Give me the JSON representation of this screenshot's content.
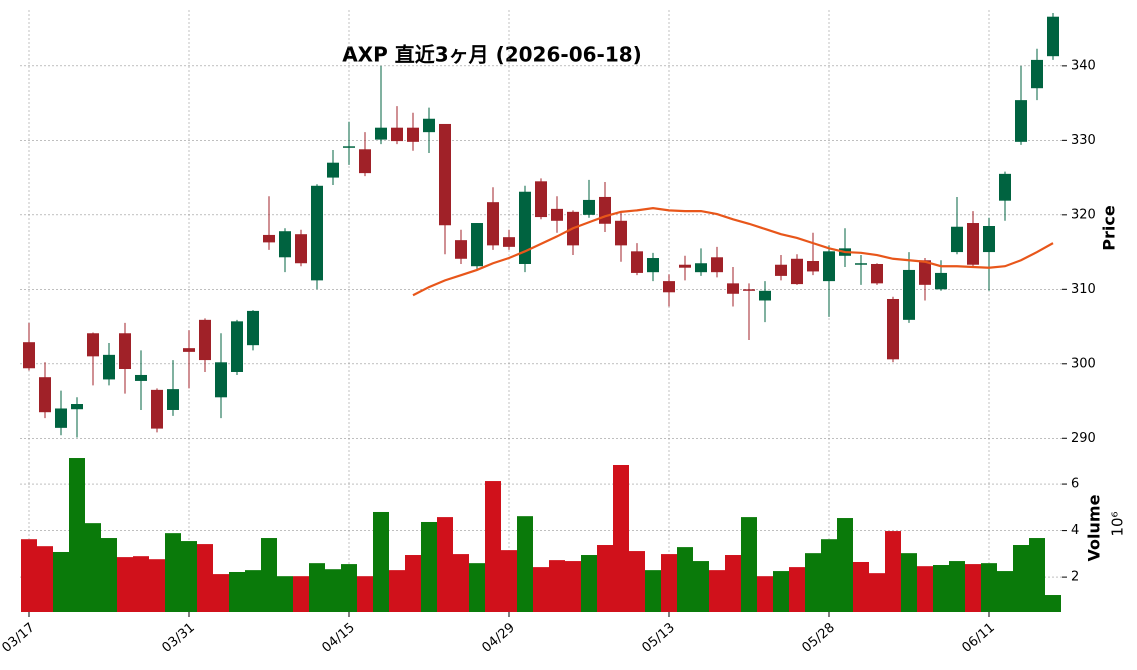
{
  "chart_data": {
    "type": "candlestick",
    "title": "AXP 直近3ヶ月 (2026-06-18)",
    "categories": [
      "03/17",
      null,
      null,
      null,
      null,
      null,
      null,
      null,
      null,
      null,
      "03/31",
      null,
      null,
      null,
      null,
      null,
      null,
      null,
      null,
      null,
      "04/15",
      null,
      null,
      null,
      null,
      null,
      null,
      null,
      null,
      null,
      "04/29",
      null,
      null,
      null,
      null,
      null,
      null,
      null,
      null,
      null,
      "05/13",
      null,
      null,
      null,
      null,
      null,
      null,
      null,
      null,
      null,
      "05/28",
      null,
      null,
      null,
      null,
      null,
      null,
      null,
      null,
      null,
      "06/11",
      null,
      null,
      null,
      null
    ],
    "open": [
      302.9,
      298.2,
      291.4,
      293.9,
      304.1,
      297.9,
      304.1,
      297.7,
      296.5,
      293.8,
      302.1,
      305.9,
      295.5,
      298.9,
      302.5,
      317.3,
      314.3,
      317.4,
      311.2,
      325.0,
      329.0,
      328.8,
      330.1,
      331.7,
      331.7,
      331.1,
      332.2,
      316.6,
      313.1,
      321.7,
      317.0,
      313.4,
      324.5,
      320.8,
      320.4,
      320.0,
      322.4,
      319.2,
      315.1,
      312.3,
      311.1,
      313.3,
      312.3,
      314.3,
      310.8,
      310.0,
      308.5,
      313.3,
      314.1,
      313.8,
      311.1,
      314.5,
      313.3,
      313.4,
      308.7,
      305.9,
      313.9,
      310.0,
      315.0,
      318.9,
      315.0,
      321.9,
      329.8,
      337.0,
      341.3
    ],
    "high": [
      305.5,
      300.2,
      296.4,
      295.5,
      304.2,
      302.8,
      305.5,
      301.8,
      296.7,
      300.5,
      304.5,
      306.1,
      304.1,
      305.9,
      307.2,
      322.5,
      318.2,
      318.0,
      324.1,
      328.7,
      332.5,
      331.1,
      340.0,
      334.6,
      333.7,
      334.4,
      332.2,
      318.0,
      318.9,
      323.7,
      318.0,
      323.9,
      324.9,
      322.5,
      320.6,
      324.7,
      324.4,
      320.4,
      316.2,
      314.9,
      312.0,
      314.5,
      315.5,
      315.7,
      313.0,
      310.8,
      311.1,
      314.6,
      314.7,
      317.6,
      315.9,
      318.2,
      314.6,
      313.5,
      309.0,
      315.0,
      314.2,
      313.9,
      322.4,
      320.5,
      319.6,
      325.8,
      340.0,
      342.3,
      347.1
    ],
    "low": [
      299.1,
      292.7,
      290.4,
      290.1,
      297.1,
      297.1,
      296.0,
      293.8,
      290.8,
      293.0,
      296.7,
      298.9,
      292.7,
      298.5,
      301.8,
      315.3,
      312.3,
      313.1,
      310.0,
      324.0,
      326.7,
      325.2,
      329.5,
      329.5,
      328.6,
      328.3,
      314.7,
      313.4,
      312.6,
      315.3,
      315.3,
      312.3,
      319.4,
      317.6,
      314.6,
      319.6,
      317.7,
      313.7,
      311.9,
      311.1,
      307.7,
      311.2,
      311.8,
      311.6,
      307.7,
      303.2,
      305.6,
      311.2,
      310.6,
      311.9,
      306.3,
      313.0,
      310.6,
      310.6,
      300.2,
      305.5,
      308.5,
      309.8,
      314.7,
      313.0,
      309.8,
      319.2,
      329.4,
      335.4,
      340.8
    ],
    "close": [
      299.4,
      293.5,
      294.0,
      294.6,
      301.0,
      301.2,
      299.3,
      298.5,
      291.3,
      296.6,
      301.6,
      300.5,
      300.2,
      305.7,
      307.1,
      316.3,
      317.8,
      313.5,
      323.9,
      327.0,
      329.2,
      325.6,
      331.7,
      329.9,
      329.8,
      332.9,
      318.6,
      314.1,
      318.9,
      315.9,
      315.7,
      323.1,
      319.7,
      319.2,
      315.9,
      322.0,
      318.8,
      315.9,
      312.2,
      314.2,
      309.6,
      312.9,
      313.5,
      312.3,
      309.4,
      309.8,
      309.8,
      311.8,
      310.7,
      312.4,
      315.1,
      315.5,
      313.5,
      310.8,
      300.6,
      312.6,
      310.6,
      312.2,
      318.4,
      313.3,
      318.5,
      325.5,
      335.4,
      340.8,
      346.6
    ],
    "up_color": "#006340",
    "down_color": "#a02128",
    "ylim": [
      289.5,
      347.5
    ],
    "yticks": [
      290,
      300,
      310,
      320,
      330,
      340
    ],
    "y_label": "Price",
    "grid": true,
    "line": {
      "color": "#e8561a",
      "values": [
        null,
        null,
        null,
        null,
        null,
        null,
        null,
        null,
        null,
        null,
        null,
        null,
        null,
        null,
        null,
        null,
        null,
        null,
        null,
        null,
        null,
        null,
        null,
        null,
        309.2,
        310.3,
        311.2,
        311.9,
        312.6,
        313.5,
        314.2,
        315.1,
        316.1,
        317.1,
        318.2,
        319.0,
        319.8,
        320.4,
        320.6,
        320.9,
        320.6,
        320.5,
        320.5,
        320.1,
        319.4,
        318.8,
        318.1,
        317.4,
        316.9,
        316.2,
        315.5,
        315.0,
        314.9,
        314.6,
        314.1,
        313.9,
        313.7,
        313.1,
        313.1,
        313.0,
        312.9,
        313.1,
        313.9,
        315.0,
        316.2
      ]
    },
    "volume": {
      "y_label": "Volume",
      "multiplier": "10⁶",
      "ylim": [
        0.5,
        7.25
      ],
      "yticks": [
        2,
        4,
        6
      ],
      "values": [
        3.63,
        3.33,
        3.08,
        7.12,
        4.32,
        3.68,
        2.86,
        2.9,
        2.77,
        3.89,
        3.55,
        3.42,
        2.13,
        2.22,
        2.3,
        3.68,
        2.04,
        2.04,
        2.6,
        2.34,
        2.56,
        2.04,
        4.8,
        2.3,
        2.95,
        4.37,
        4.58,
        2.99,
        2.6,
        6.13,
        3.16,
        4.62,
        2.43,
        2.73,
        2.69,
        2.95,
        3.38,
        6.82,
        3.12,
        2.3,
        2.99,
        3.29,
        2.69,
        2.3,
        2.95,
        4.58,
        2.04,
        2.26,
        2.43,
        3.03,
        3.63,
        4.54,
        2.65,
        2.17,
        3.98,
        3.03,
        2.47,
        2.52,
        2.69,
        2.56,
        2.6,
        2.26,
        3.38,
        3.68,
        1.23
      ],
      "colors": [
        "#d0111b",
        "#d0111b",
        "#0a7a0a",
        "#0a7a0a",
        "#0a7a0a",
        "#0a7a0a",
        "#d0111b",
        "#d0111b",
        "#d0111b",
        "#0a7a0a",
        "#0a7a0a",
        "#d0111b",
        "#d0111b",
        "#0a7a0a",
        "#0a7a0a",
        "#0a7a0a",
        "#0a7a0a",
        "#d0111b",
        "#0a7a0a",
        "#0a7a0a",
        "#0a7a0a",
        "#d0111b",
        "#0a7a0a",
        "#d0111b",
        "#d0111b",
        "#0a7a0a",
        "#d0111b",
        "#d0111b",
        "#0a7a0a",
        "#d0111b",
        "#d0111b",
        "#0a7a0a",
        "#d0111b",
        "#d0111b",
        "#d0111b",
        "#0a7a0a",
        "#d0111b",
        "#d0111b",
        "#d0111b",
        "#0a7a0a",
        "#d0111b",
        "#0a7a0a",
        "#0a7a0a",
        "#d0111b",
        "#d0111b",
        "#0a7a0a",
        "#d0111b",
        "#0a7a0a",
        "#d0111b",
        "#0a7a0a",
        "#0a7a0a",
        "#0a7a0a",
        "#d0111b",
        "#d0111b",
        "#d0111b",
        "#0a7a0a",
        "#d0111b",
        "#0a7a0a",
        "#0a7a0a",
        "#d0111b",
        "#0a7a0a",
        "#0a7a0a",
        "#0a7a0a",
        "#0a7a0a",
        "#0a7a0a"
      ]
    }
  }
}
